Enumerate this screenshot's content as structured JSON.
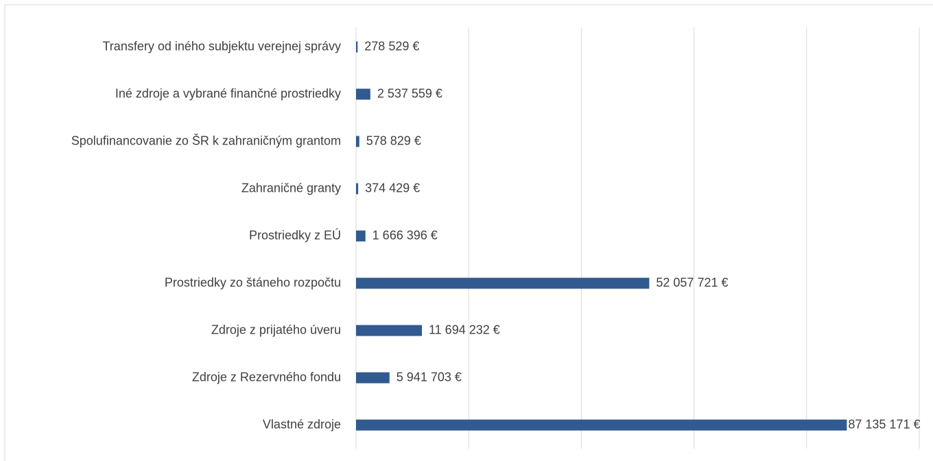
{
  "chart_data": {
    "type": "barh",
    "categories": [
      "Transfery od iného subjektu verejnej správy",
      "Iné zdroje a vybrané finančné prostriedky",
      "Spolufinancovanie zo ŠR k zahraničným grantom",
      "Zahraničné granty",
      "Prostriedky z EÚ",
      "Prostriedky zo štáneho rozpočtu",
      "Zdroje z prijatého úveru",
      "Zdroje z Rezervného fondu",
      "Vlastné zdroje"
    ],
    "values": [
      278529,
      2537559,
      578829,
      374429,
      1666396,
      52057721,
      11694232,
      5941703,
      87135171
    ],
    "value_labels": [
      "278 529 €",
      "2 537 559 €",
      "578 829 €",
      "374 429 €",
      "1 666 396 €",
      "52 057 721 €",
      "11 694 232 €",
      "5 941 703 €",
      "87 135 171 €"
    ],
    "color": "#305a90",
    "xlim": [
      0,
      100000000
    ],
    "xticks": [
      0,
      20000000,
      40000000,
      60000000,
      80000000,
      100000000
    ],
    "grid": true
  }
}
